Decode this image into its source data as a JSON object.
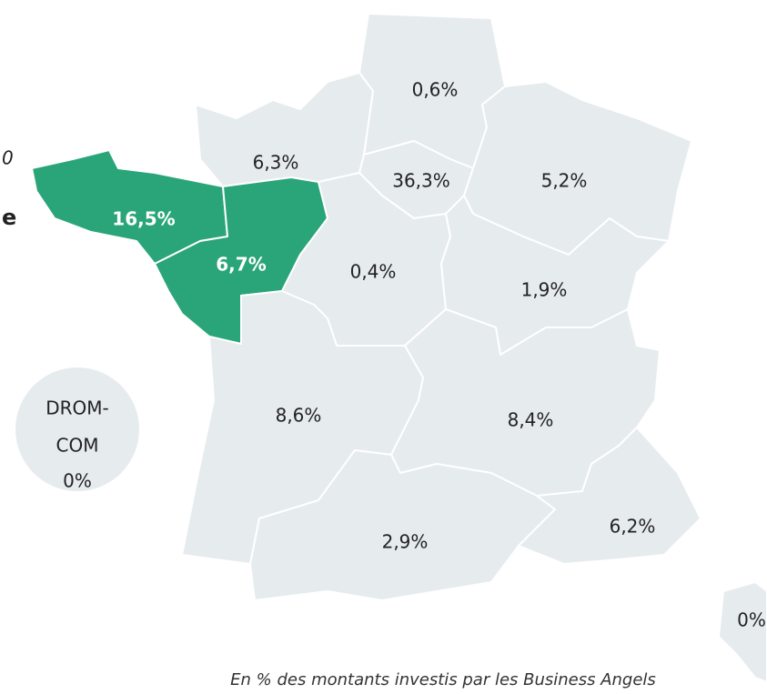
{
  "fragments": {
    "italic": "0",
    "bold": "e"
  },
  "regions": [
    {
      "label": "0,6%",
      "highlight": false
    },
    {
      "label": "6,3%",
      "highlight": false
    },
    {
      "label": "36,3%",
      "highlight": false
    },
    {
      "label": "5,2%",
      "highlight": false
    },
    {
      "label": "16,5%",
      "highlight": true
    },
    {
      "label": "6,7%",
      "highlight": true
    },
    {
      "label": "0,4%",
      "highlight": false
    },
    {
      "label": "1,9%",
      "highlight": false
    },
    {
      "label": "8,6%",
      "highlight": false
    },
    {
      "label": "8,4%",
      "highlight": false
    },
    {
      "label": "2,9%",
      "highlight": false
    },
    {
      "label": "6,2%",
      "highlight": false
    },
    {
      "label": "0%",
      "highlight": false
    }
  ],
  "drom_com": {
    "lines": [
      "DROM-",
      "COM",
      "0%"
    ]
  },
  "caption": "En % des montants investis par les Business Angels"
}
